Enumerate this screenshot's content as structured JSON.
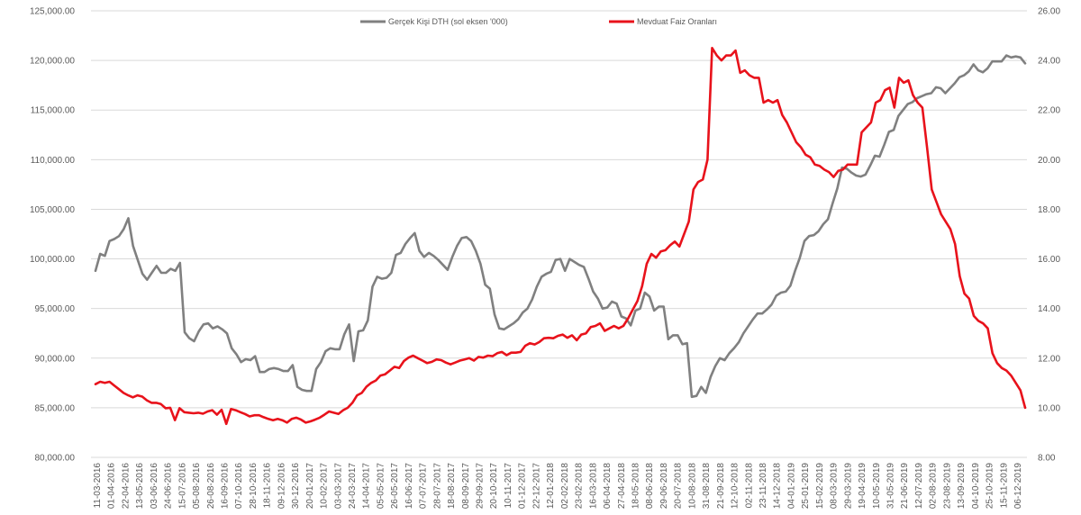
{
  "chart_data": {
    "type": "line",
    "title": "",
    "grid": true,
    "legend_position": "top",
    "y_left": {
      "min": 80000,
      "max": 125000,
      "ticks": [
        "80,000.00",
        "85,000.00",
        "90,000.00",
        "95,000.00",
        "100,000.00",
        "105,000.00",
        "110,000.00",
        "115,000.00",
        "120,000.00",
        "125,000.00"
      ]
    },
    "y_right": {
      "min": 8,
      "max": 26,
      "ticks": [
        "8.00",
        "10.00",
        "12.00",
        "14.00",
        "16.00",
        "18.00",
        "20.00",
        "22.00",
        "24.00",
        "26.00"
      ]
    },
    "x_ticks": [
      "11-03-2016",
      "01-04-2016",
      "22-04-2016",
      "13-05-2016",
      "03-06-2016",
      "24-06-2016",
      "15-07-2016",
      "05-08-2016",
      "26-08-2016",
      "16-09-2016",
      "07-10-2016",
      "28-10-2016",
      "18-11-2016",
      "09-12-2016",
      "30-12-2016",
      "20-01-2017",
      "10-02-2017",
      "03-03-2017",
      "24-03-2017",
      "14-04-2017",
      "05-05-2017",
      "26-05-2017",
      "16-06-2017",
      "07-07-2017",
      "28-07-2017",
      "18-08-2017",
      "08-09-2017",
      "29-09-2017",
      "20-10-2017",
      "10-11-2017",
      "01-12-2017",
      "22-12-2017",
      "12-01-2018",
      "02-02-2018",
      "23-02-2018",
      "16-03-2018",
      "06-04-2018",
      "27-04-2018",
      "18-05-2018",
      "08-06-2018",
      "29-06-2018",
      "20-07-2018",
      "10-08-2018",
      "31-08-2018",
      "21-09-2018",
      "12-10-2018",
      "02-11-2018",
      "23-11-2018",
      "14-12-2018",
      "04-01-2019",
      "25-01-2019",
      "15-02-2019",
      "08-03-2019",
      "29-03-2019",
      "19-04-2019",
      "10-05-2019",
      "31-05-2019",
      "21-06-2019",
      "12-07-2019",
      "02-08-2019",
      "23-08-2019",
      "13-09-2019",
      "04-10-2019",
      "25-10-2019",
      "15-11-2019",
      "06-12-2019"
    ],
    "series": [
      {
        "name": "Gerçek Kişi DTH (sol eksen '000)",
        "axis": "left",
        "color": "#808080",
        "values": [
          98800,
          100500,
          100300,
          101800,
          102000,
          102300,
          103000,
          104100,
          101300,
          99900,
          98500,
          97900,
          98600,
          99300,
          98600,
          98600,
          99000,
          98800,
          99600,
          92600,
          92000,
          91700,
          92700,
          93400,
          93500,
          93000,
          93200,
          92900,
          92500,
          91000,
          90400,
          89600,
          89900,
          89800,
          90200,
          88600,
          88600,
          88900,
          89000,
          88900,
          88700,
          88700,
          89300,
          87100,
          86800,
          86700,
          86700,
          88900,
          89600,
          90700,
          91000,
          90900,
          90900,
          92400,
          93400,
          89700,
          92700,
          92800,
          93800,
          97200,
          98200,
          98000,
          98100,
          98600,
          100400,
          100600,
          101500,
          102100,
          102600,
          100800,
          100200,
          100600,
          100300,
          99900,
          99400,
          98900,
          100200,
          101300,
          102100,
          102200,
          101800,
          100800,
          99500,
          97400,
          97000,
          94400,
          93000,
          92900,
          93200,
          93500,
          93900,
          94600,
          95000,
          95900,
          97200,
          98200,
          98500,
          98700,
          99900,
          100000,
          98800,
          100000,
          99700,
          99400,
          99200,
          98000,
          96700,
          96000,
          95000,
          95100,
          95700,
          95500,
          94200,
          94000,
          93300,
          94800,
          95000,
          96600,
          96200,
          94800,
          95200,
          95200,
          91900,
          92300,
          92300,
          91400,
          91500,
          86100,
          86200,
          87100,
          86500,
          88100,
          89200,
          90000,
          89800,
          90500,
          91000,
          91600,
          92500,
          93200,
          93900,
          94500,
          94500,
          94900,
          95400,
          96300,
          96600,
          96700,
          97300,
          98800,
          100100,
          101800,
          102300,
          102400,
          102800,
          103500,
          104000,
          105600,
          107100,
          109200,
          109100,
          108700,
          108400,
          108300,
          108500,
          109400,
          110400,
          110300,
          111500,
          112800,
          113000,
          114400,
          115000,
          115600,
          115800,
          116200,
          116400,
          116600,
          116700,
          117300,
          117200,
          116700,
          117200,
          117700,
          118300,
          118500,
          118900,
          119600,
          119000,
          118800,
          119200,
          119900,
          119900,
          119900,
          120500,
          120300,
          120400,
          120300,
          119700
        ]
      },
      {
        "name": "Mevduat Faiz Oranları",
        "axis": "right",
        "color": "#e8121b",
        "values": [
          10.95,
          11.05,
          11.0,
          11.05,
          10.9,
          10.75,
          10.6,
          10.5,
          10.42,
          10.5,
          10.45,
          10.3,
          10.2,
          10.2,
          10.15,
          9.98,
          10.0,
          9.5,
          9.98,
          9.82,
          9.8,
          9.78,
          9.8,
          9.76,
          9.85,
          9.9,
          9.72,
          9.92,
          9.35,
          9.95,
          9.9,
          9.82,
          9.75,
          9.65,
          9.7,
          9.7,
          9.62,
          9.55,
          9.5,
          9.55,
          9.5,
          9.4,
          9.55,
          9.6,
          9.52,
          9.4,
          9.45,
          9.52,
          9.6,
          9.72,
          9.85,
          9.8,
          9.75,
          9.9,
          10.0,
          10.2,
          10.5,
          10.6,
          10.85,
          11.0,
          11.1,
          11.3,
          11.35,
          11.5,
          11.65,
          11.6,
          11.88,
          12.02,
          12.1,
          12.0,
          11.9,
          11.8,
          11.85,
          11.95,
          11.92,
          11.82,
          11.75,
          11.82,
          11.9,
          11.95,
          12.0,
          11.9,
          12.05,
          12.02,
          12.1,
          12.08,
          12.2,
          12.25,
          12.12,
          12.22,
          12.22,
          12.25,
          12.5,
          12.6,
          12.55,
          12.65,
          12.8,
          12.82,
          12.8,
          12.9,
          12.95,
          12.82,
          12.92,
          12.72,
          12.95,
          13.0,
          13.25,
          13.3,
          13.4,
          13.1,
          13.2,
          13.3,
          13.2,
          13.3,
          13.6,
          13.95,
          14.3,
          14.9,
          15.8,
          16.2,
          16.05,
          16.3,
          16.35,
          16.55,
          16.7,
          16.5,
          17.0,
          17.5,
          18.8,
          19.1,
          19.2,
          20.0,
          24.5,
          24.2,
          24.0,
          24.2,
          24.2,
          24.4,
          23.5,
          23.6,
          23.4,
          23.3,
          23.3,
          22.3,
          22.4,
          22.3,
          22.4,
          21.8,
          21.5,
          21.1,
          20.7,
          20.5,
          20.2,
          20.1,
          19.8,
          19.75,
          19.6,
          19.5,
          19.3,
          19.55,
          19.6,
          19.8,
          19.8,
          19.8,
          21.1,
          21.3,
          21.5,
          22.3,
          22.4,
          22.8,
          22.9,
          22.1,
          23.3,
          23.1,
          23.2,
          22.6,
          22.3,
          22.1,
          20.5,
          18.8,
          18.3,
          17.8,
          17.5,
          17.2,
          16.6,
          15.3,
          14.6,
          14.4,
          13.7,
          13.5,
          13.4,
          13.2,
          12.2,
          11.8,
          11.6,
          11.5,
          11.3,
          11.0,
          10.7,
          10.0
        ]
      }
    ]
  }
}
